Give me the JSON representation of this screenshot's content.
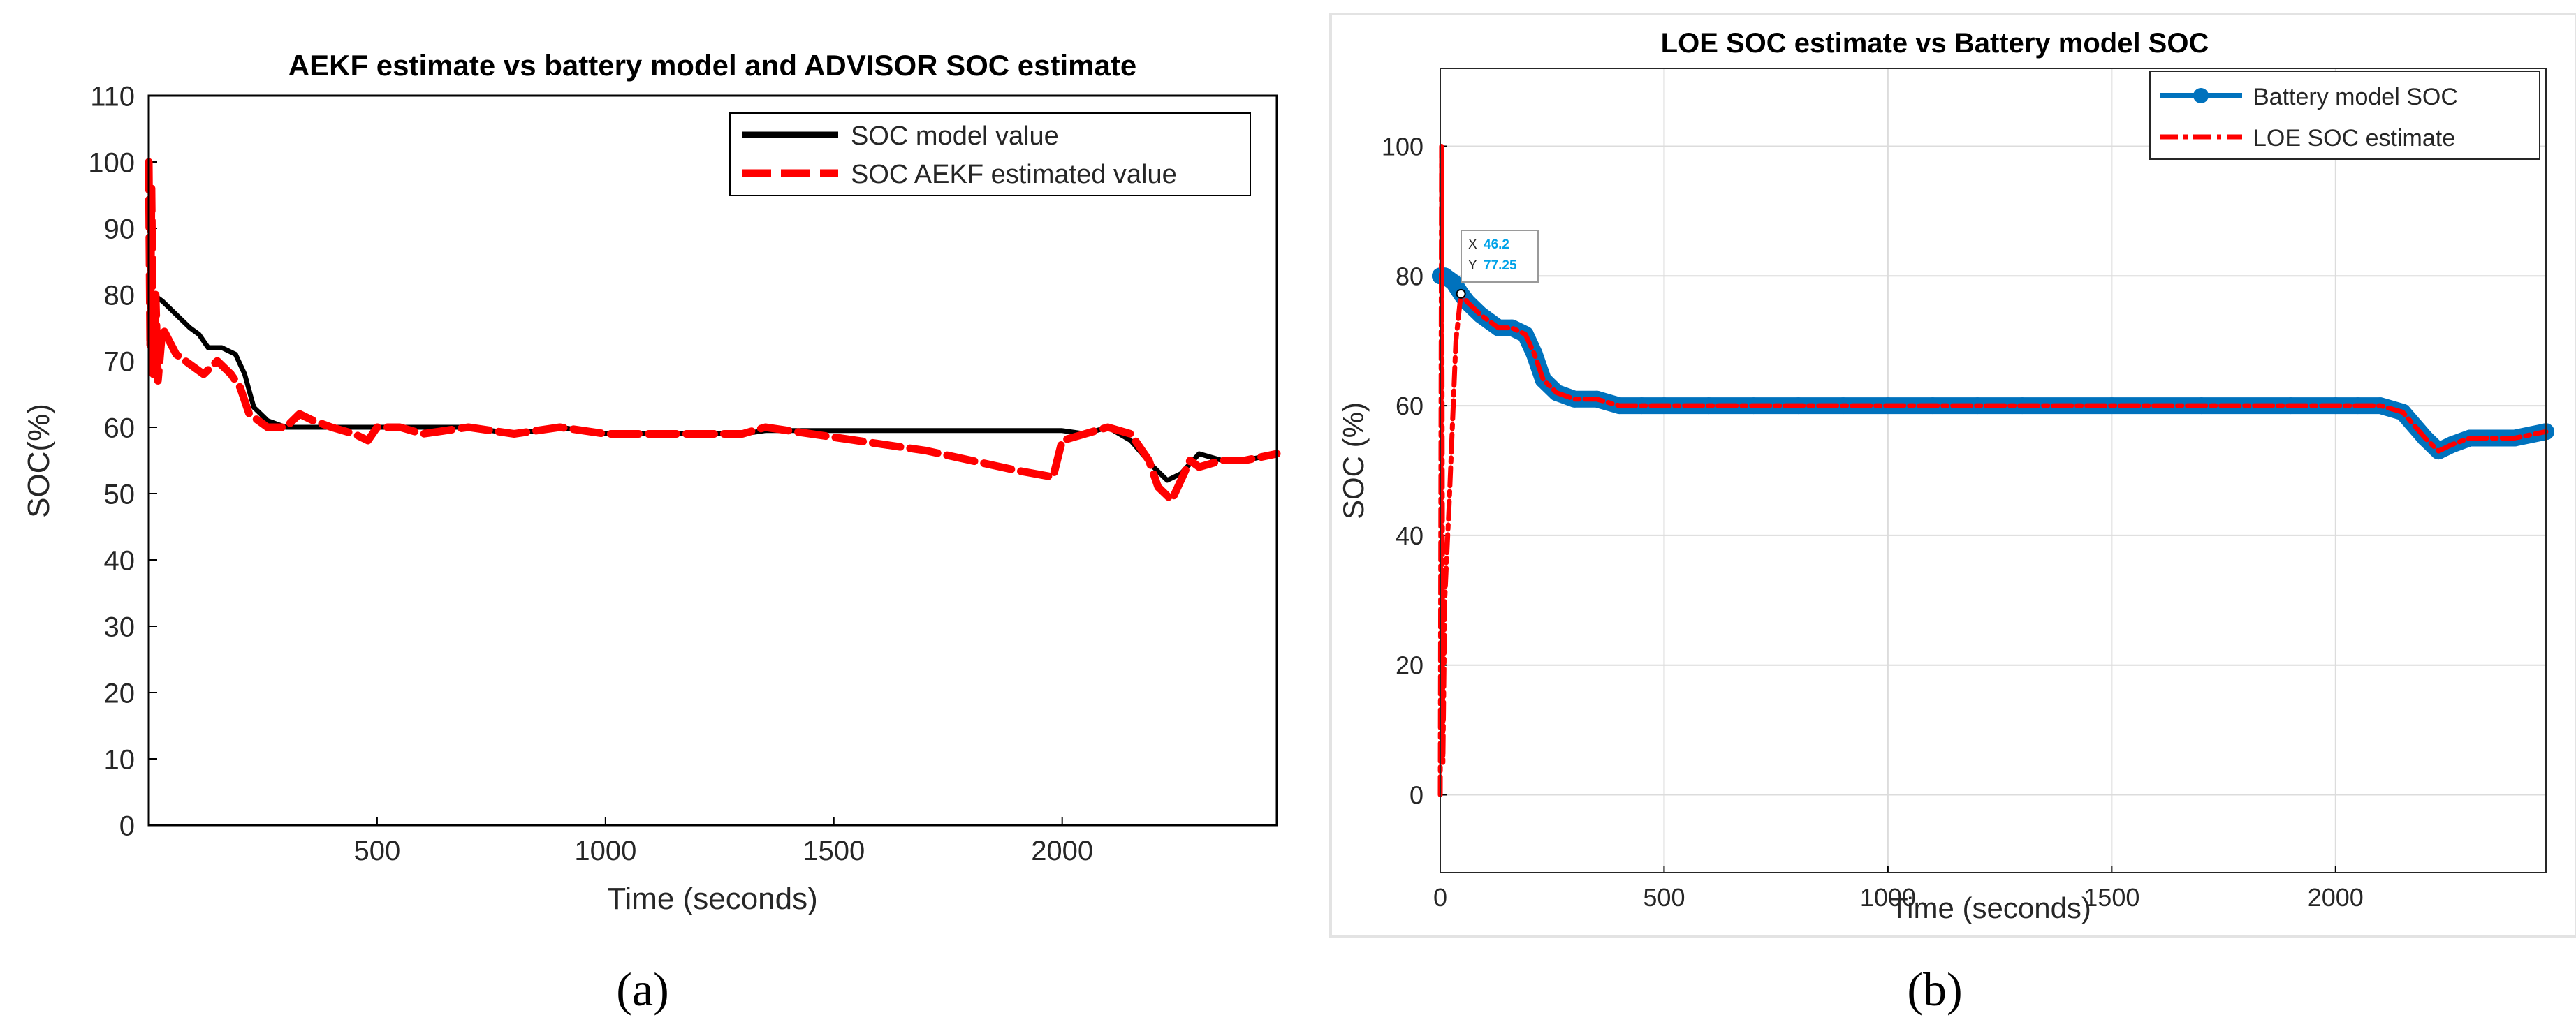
{
  "captions": {
    "a": "(a)",
    "b": "(b)"
  },
  "chart_data": [
    {
      "type": "line",
      "title": "AEKF estimate vs battery model and ADVISOR SOC estimate",
      "xlabel": "Time (seconds)",
      "ylabel": "SOC(%)",
      "xlim": [
        0,
        2470
      ],
      "ylim": [
        0,
        110
      ],
      "xticks": [
        500,
        1000,
        1500,
        2000
      ],
      "yticks": [
        0,
        10,
        20,
        30,
        40,
        50,
        60,
        70,
        80,
        90,
        100,
        110
      ],
      "grid": false,
      "legend_position": "top-right",
      "series": [
        {
          "name": "SOC model value",
          "color": "#000000",
          "style": "solid",
          "x": [
            0,
            10,
            30,
            60,
            90,
            110,
            130,
            160,
            190,
            210,
            230,
            260,
            300,
            350,
            400,
            450,
            500,
            600,
            700,
            800,
            900,
            1000,
            1100,
            1200,
            1300,
            1350,
            1500,
            1700,
            1900,
            2000,
            2050,
            2100,
            2150,
            2200,
            2230,
            2260,
            2300,
            2350,
            2400,
            2470
          ],
          "y": [
            80,
            80,
            79,
            77,
            75,
            74,
            72,
            72,
            71,
            68,
            63,
            61,
            60,
            60,
            60,
            60,
            60,
            60,
            60,
            59,
            60,
            59,
            59,
            59,
            59,
            59.5,
            59.5,
            59.5,
            59.5,
            59.5,
            59,
            60,
            58,
            54,
            52,
            53,
            56,
            55,
            55,
            56
          ]
        },
        {
          "name": "SOC AEKF estimated value",
          "color": "#ff0000",
          "style": "dashed",
          "x": [
            0,
            3,
            6,
            10,
            15,
            20,
            30,
            45,
            60,
            80,
            100,
            120,
            150,
            180,
            200,
            220,
            240,
            260,
            300,
            330,
            360,
            400,
            450,
            480,
            500,
            550,
            600,
            700,
            800,
            900,
            1000,
            1100,
            1200,
            1300,
            1350,
            1500,
            1600,
            1700,
            1800,
            1900,
            1980,
            2000,
            2050,
            2100,
            2150,
            2190,
            2210,
            2240,
            2260,
            2280,
            2300,
            2350,
            2400,
            2470
          ],
          "y": [
            100,
            72,
            96,
            68,
            80,
            67,
            75,
            73,
            71,
            70,
            69,
            68,
            70,
            68,
            66,
            62,
            61,
            60,
            60,
            62,
            61,
            60,
            59,
            58,
            60,
            60,
            59,
            60,
            59,
            60,
            59,
            59,
            59,
            59,
            60,
            58.5,
            57.5,
            56.5,
            55,
            53.5,
            52.5,
            58,
            59,
            60,
            59,
            55,
            51,
            49,
            52,
            55,
            54,
            55,
            55,
            56
          ]
        }
      ]
    },
    {
      "type": "line",
      "title": "LOE SOC estimate vs Battery model SOC",
      "xlabel": "Time (seconds)",
      "ylabel": "SOC (%)",
      "xlim": [
        0,
        2470
      ],
      "ylim": [
        -12,
        112
      ],
      "xticks": [
        0,
        500,
        1000,
        1500,
        2000
      ],
      "yticks": [
        0,
        20,
        40,
        60,
        80,
        100
      ],
      "grid": true,
      "legend_position": "top-right",
      "datatip": {
        "x_label": "X",
        "x_value": "46.2",
        "y_label": "Y",
        "y_value": "77.25",
        "x": 46.2,
        "y": 77.25
      },
      "series": [
        {
          "name": "Battery model SOC",
          "color": "#0072bd",
          "style": "solid-markers",
          "x": [
            0,
            10,
            30,
            46.2,
            60,
            90,
            110,
            130,
            160,
            190,
            210,
            230,
            260,
            300,
            350,
            400,
            450,
            500,
            600,
            700,
            800,
            900,
            1000,
            1100,
            1200,
            1300,
            1500,
            1700,
            1900,
            2000,
            2050,
            2100,
            2150,
            2200,
            2230,
            2260,
            2300,
            2350,
            2400,
            2470
          ],
          "y": [
            80,
            80,
            79,
            77.25,
            76,
            74,
            73,
            72,
            72,
            71,
            68,
            64,
            62,
            61,
            61,
            60,
            60,
            60,
            60,
            60,
            60,
            60,
            60,
            60,
            60,
            60,
            60,
            60,
            60,
            60,
            60,
            60,
            59,
            55,
            53,
            54,
            55,
            55,
            55,
            56
          ]
        },
        {
          "name": "LOE SOC estimate",
          "color": "#ff0000",
          "style": "dash-dot",
          "x": [
            0,
            3,
            6,
            10,
            20,
            35,
            46.2,
            60,
            90,
            110,
            130,
            160,
            190,
            210,
            230,
            260,
            300,
            350,
            400,
            450,
            500,
            600,
            700,
            800,
            900,
            1000,
            1100,
            1200,
            1300,
            1500,
            1700,
            1900,
            2000,
            2050,
            2100,
            2150,
            2200,
            2230,
            2260,
            2300,
            2350,
            2400,
            2470
          ],
          "y": [
            0,
            100,
            5,
            30,
            45,
            70,
            77.25,
            76,
            74,
            73,
            72,
            72,
            71,
            68,
            64,
            62,
            61,
            61,
            60,
            60,
            60,
            60,
            60,
            60,
            60,
            60,
            60,
            60,
            60,
            60,
            60,
            60,
            60,
            60,
            60,
            59,
            55,
            53,
            54,
            55,
            55,
            55,
            56
          ]
        }
      ]
    }
  ]
}
